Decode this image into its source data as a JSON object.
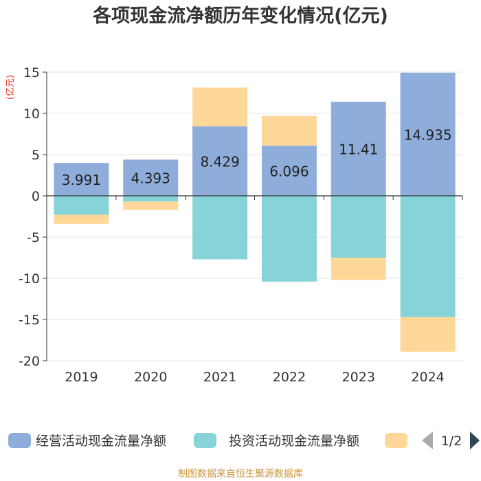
{
  "chart_data": {
    "type": "bar",
    "stacked": true,
    "title": "各项现金流净额历年变化情况(亿元)",
    "ylabel": "(亿元)",
    "categories": [
      "2019",
      "2020",
      "2021",
      "2022",
      "2023",
      "2024"
    ],
    "ylim": [
      -20,
      15
    ],
    "yticks": [
      15,
      10,
      5,
      0,
      -5,
      -10,
      -15,
      -20
    ],
    "ytick_labels": [
      "15",
      "10",
      "5",
      "0",
      "-5",
      "-10",
      "-15",
      "-20"
    ],
    "series": [
      {
        "name": "经营活动现金流量净额",
        "color": "#8eaddb",
        "values": [
          3.991,
          4.393,
          8.429,
          6.096,
          11.41,
          14.935
        ],
        "labels": [
          "3.991",
          "4.393",
          "8.429",
          "6.096",
          "11.41",
          "14.935"
        ]
      },
      {
        "name": "投资活动现金流量净额",
        "color": "#86d4d8",
        "values": [
          -2.3,
          -0.7,
          -7.7,
          -10.4,
          -7.5,
          -14.7
        ]
      },
      {
        "name": "",
        "color": "#ffd899",
        "values": [
          -1.1,
          -1.0,
          4.7,
          3.6,
          -2.7,
          -4.2
        ]
      }
    ],
    "legend": {
      "position": "bottom",
      "page": "1/2"
    }
  },
  "footer": "制图数据来自恒生聚源数据库"
}
